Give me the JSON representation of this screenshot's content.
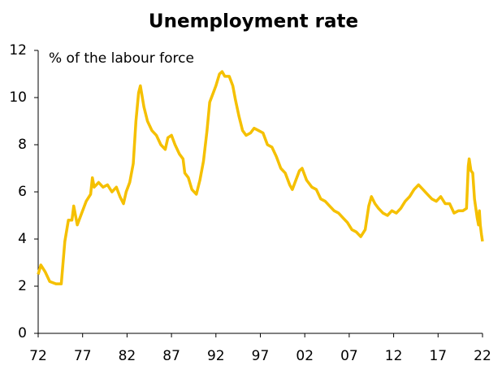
{
  "chart_data": {
    "type": "line",
    "title": "Unemployment rate",
    "subtitle": "% of the labour force",
    "x": [
      1972.0,
      1972.3,
      1972.8,
      1973.3,
      1974.0,
      1974.6,
      1975.0,
      1975.4,
      1975.8,
      1976.0,
      1976.4,
      1976.8,
      1977.4,
      1977.9,
      1978.1,
      1978.3,
      1978.8,
      1979.3,
      1979.8,
      1980.3,
      1980.8,
      1981.2,
      1981.6,
      1981.9,
      1982.3,
      1982.7,
      1983.0,
      1983.3,
      1983.5,
      1983.9,
      1984.3,
      1984.8,
      1985.3,
      1985.8,
      1986.3,
      1986.6,
      1987.0,
      1987.4,
      1987.9,
      1988.3,
      1988.5,
      1988.9,
      1989.3,
      1989.8,
      1990.2,
      1990.6,
      1991.0,
      1991.3,
      1991.7,
      1992.0,
      1992.4,
      1992.7,
      1993.0,
      1993.5,
      1993.9,
      1994.2,
      1994.6,
      1995.0,
      1995.4,
      1995.9,
      1996.3,
      1996.8,
      1997.3,
      1997.8,
      1998.3,
      1998.8,
      1999.3,
      1999.8,
      2000.3,
      2000.6,
      2001.0,
      2001.4,
      2001.7,
      2002.2,
      2002.8,
      2003.3,
      2003.8,
      2004.3,
      2004.8,
      2005.3,
      2005.8,
      2006.3,
      2006.8,
      2007.3,
      2007.8,
      2008.3,
      2008.8,
      2009.2,
      2009.5,
      2009.9,
      2010.3,
      2010.8,
      2011.3,
      2011.8,
      2012.3,
      2012.8,
      2013.3,
      2013.8,
      2014.3,
      2014.8,
      2015.3,
      2015.8,
      2016.3,
      2016.8,
      2017.3,
      2017.8,
      2018.3,
      2018.8,
      2019.3,
      2019.8,
      2020.2,
      2020.4,
      2020.5,
      2020.7,
      2020.9,
      2021.1,
      2021.4,
      2021.55,
      2021.65,
      2021.75,
      2021.88,
      2022.0
    ],
    "series": [
      {
        "name": "Unemployment rate",
        "color": "#f5c000",
        "values": [
          2.5,
          2.9,
          2.6,
          2.2,
          2.1,
          2.1,
          3.9,
          4.8,
          4.8,
          5.4,
          4.6,
          5.0,
          5.6,
          5.9,
          6.6,
          6.2,
          6.4,
          6.2,
          6.3,
          6.0,
          6.2,
          5.8,
          5.5,
          6.0,
          6.4,
          7.2,
          9.0,
          10.2,
          10.5,
          9.6,
          9.0,
          8.6,
          8.4,
          8.0,
          7.8,
          8.3,
          8.4,
          8.0,
          7.6,
          7.4,
          6.8,
          6.6,
          6.1,
          5.9,
          6.5,
          7.3,
          8.6,
          9.8,
          10.2,
          10.5,
          11.0,
          11.1,
          10.9,
          10.9,
          10.5,
          9.9,
          9.2,
          8.6,
          8.4,
          8.5,
          8.7,
          8.6,
          8.5,
          8.0,
          7.9,
          7.5,
          7.0,
          6.8,
          6.3,
          6.1,
          6.5,
          6.9,
          7.0,
          6.5,
          6.2,
          6.1,
          5.7,
          5.6,
          5.4,
          5.2,
          5.1,
          4.9,
          4.7,
          4.4,
          4.3,
          4.1,
          4.4,
          5.4,
          5.8,
          5.5,
          5.3,
          5.1,
          5.0,
          5.2,
          5.1,
          5.3,
          5.6,
          5.8,
          6.1,
          6.3,
          6.1,
          5.9,
          5.7,
          5.6,
          5.8,
          5.5,
          5.5,
          5.1,
          5.2,
          5.2,
          5.3,
          7.1,
          7.4,
          6.9,
          6.8,
          5.7,
          4.9,
          4.6,
          5.2,
          4.6,
          4.2,
          3.9
        ]
      }
    ],
    "xlim": [
      1972,
      2022
    ],
    "xticks": [
      {
        "value": 1972,
        "label": "72"
      },
      {
        "value": 1977,
        "label": "77"
      },
      {
        "value": 1982,
        "label": "82"
      },
      {
        "value": 1987,
        "label": "87"
      },
      {
        "value": 1992,
        "label": "92"
      },
      {
        "value": 1997,
        "label": "97"
      },
      {
        "value": 2002,
        "label": "02"
      },
      {
        "value": 2007,
        "label": "07"
      },
      {
        "value": 2012,
        "label": "12"
      },
      {
        "value": 2017,
        "label": "17"
      },
      {
        "value": 2022,
        "label": "22"
      }
    ],
    "ylim": [
      0,
      12
    ],
    "yticks": [
      0,
      2,
      4,
      6,
      8,
      10,
      12
    ]
  }
}
